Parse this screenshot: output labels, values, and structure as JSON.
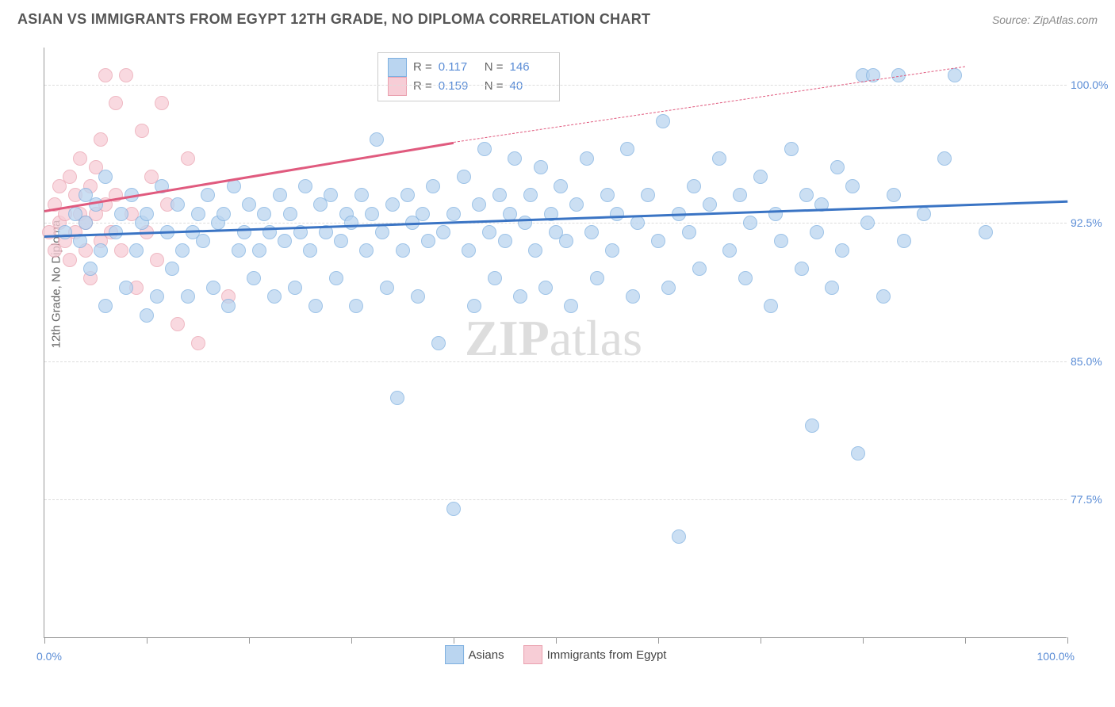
{
  "header": {
    "title": "ASIAN VS IMMIGRANTS FROM EGYPT 12TH GRADE, NO DIPLOMA CORRELATION CHART",
    "source": "Source: ZipAtlas.com"
  },
  "chart": {
    "type": "scatter",
    "y_axis_title": "12th Grade, No Diploma",
    "xlim_label_left": "0.0%",
    "xlim_label_right": "100.0%",
    "xlim": [
      0,
      100
    ],
    "ylim": [
      70,
      102
    ],
    "y_ticks": [
      {
        "val": 100.0,
        "label": "100.0%"
      },
      {
        "val": 92.5,
        "label": "92.5%"
      },
      {
        "val": 85.0,
        "label": "85.0%"
      },
      {
        "val": 77.5,
        "label": "77.5%"
      }
    ],
    "x_ticks": [
      0,
      10,
      20,
      30,
      40,
      50,
      60,
      70,
      80,
      90,
      100
    ],
    "background_color": "#ffffff",
    "grid_color": "#dddddd",
    "marker_radius": 9,
    "series_a": {
      "label": "Asians",
      "fill_color": "#bad5f0",
      "border_color": "#7eb0e0",
      "line_color": "#3a74c4",
      "R": "0.117",
      "N": "146",
      "trend": {
        "x1": 0,
        "y1": 91.8,
        "x2": 100,
        "y2": 93.7
      },
      "points": [
        [
          2,
          92
        ],
        [
          3,
          93
        ],
        [
          3.5,
          91.5
        ],
        [
          4,
          92.5
        ],
        [
          4,
          94
        ],
        [
          4.5,
          90
        ],
        [
          5,
          93.5
        ],
        [
          5.5,
          91
        ],
        [
          6,
          88
        ],
        [
          6,
          95
        ],
        [
          7,
          92
        ],
        [
          7.5,
          93
        ],
        [
          8,
          89
        ],
        [
          8.5,
          94
        ],
        [
          9,
          91
        ],
        [
          9.5,
          92.5
        ],
        [
          10,
          93
        ],
        [
          10,
          87.5
        ],
        [
          11,
          88.5
        ],
        [
          11.5,
          94.5
        ],
        [
          12,
          92
        ],
        [
          12.5,
          90
        ],
        [
          13,
          93.5
        ],
        [
          13.5,
          91
        ],
        [
          14,
          88.5
        ],
        [
          14.5,
          92
        ],
        [
          15,
          93
        ],
        [
          15.5,
          91.5
        ],
        [
          16,
          94
        ],
        [
          16.5,
          89
        ],
        [
          17,
          92.5
        ],
        [
          17.5,
          93
        ],
        [
          18,
          88
        ],
        [
          18.5,
          94.5
        ],
        [
          19,
          91
        ],
        [
          19.5,
          92
        ],
        [
          20,
          93.5
        ],
        [
          20.5,
          89.5
        ],
        [
          21,
          91
        ],
        [
          21.5,
          93
        ],
        [
          22,
          92
        ],
        [
          22.5,
          88.5
        ],
        [
          23,
          94
        ],
        [
          23.5,
          91.5
        ],
        [
          24,
          93
        ],
        [
          24.5,
          89
        ],
        [
          25,
          92
        ],
        [
          25.5,
          94.5
        ],
        [
          26,
          91
        ],
        [
          26.5,
          88
        ],
        [
          27,
          93.5
        ],
        [
          27.5,
          92
        ],
        [
          28,
          94
        ],
        [
          28.5,
          89.5
        ],
        [
          29,
          91.5
        ],
        [
          29.5,
          93
        ],
        [
          30,
          92.5
        ],
        [
          30.5,
          88
        ],
        [
          31,
          94
        ],
        [
          31.5,
          91
        ],
        [
          32,
          93
        ],
        [
          32.5,
          97
        ],
        [
          33,
          92
        ],
        [
          33.5,
          89
        ],
        [
          34,
          93.5
        ],
        [
          34.5,
          83
        ],
        [
          35,
          91
        ],
        [
          35.5,
          94
        ],
        [
          36,
          92.5
        ],
        [
          36.5,
          88.5
        ],
        [
          37,
          93
        ],
        [
          37.5,
          91.5
        ],
        [
          38,
          94.5
        ],
        [
          38.5,
          86
        ],
        [
          39,
          92
        ],
        [
          40,
          93
        ],
        [
          40,
          77
        ],
        [
          41,
          95
        ],
        [
          41.5,
          91
        ],
        [
          42,
          88
        ],
        [
          42.5,
          93.5
        ],
        [
          43,
          96.5
        ],
        [
          43.5,
          92
        ],
        [
          44,
          89.5
        ],
        [
          44.5,
          94
        ],
        [
          45,
          91.5
        ],
        [
          45.5,
          93
        ],
        [
          46,
          96
        ],
        [
          46.5,
          88.5
        ],
        [
          47,
          92.5
        ],
        [
          47.5,
          94
        ],
        [
          48,
          91
        ],
        [
          48.5,
          95.5
        ],
        [
          49,
          89
        ],
        [
          49.5,
          93
        ],
        [
          50,
          92
        ],
        [
          50.5,
          94.5
        ],
        [
          51,
          91.5
        ],
        [
          51.5,
          88
        ],
        [
          52,
          93.5
        ],
        [
          53,
          96
        ],
        [
          53.5,
          92
        ],
        [
          54,
          89.5
        ],
        [
          55,
          94
        ],
        [
          55.5,
          91
        ],
        [
          56,
          93
        ],
        [
          57,
          96.5
        ],
        [
          57.5,
          88.5
        ],
        [
          58,
          92.5
        ],
        [
          59,
          94
        ],
        [
          60,
          91.5
        ],
        [
          60.5,
          98
        ],
        [
          61,
          89
        ],
        [
          62,
          93
        ],
        [
          62,
          75.5
        ],
        [
          63,
          92
        ],
        [
          63.5,
          94.5
        ],
        [
          64,
          90
        ],
        [
          65,
          93.5
        ],
        [
          66,
          96
        ],
        [
          67,
          91
        ],
        [
          68,
          94
        ],
        [
          68.5,
          89.5
        ],
        [
          69,
          92.5
        ],
        [
          70,
          95
        ],
        [
          71,
          88
        ],
        [
          71.5,
          93
        ],
        [
          72,
          91.5
        ],
        [
          73,
          96.5
        ],
        [
          74,
          90
        ],
        [
          74.5,
          94
        ],
        [
          75,
          81.5
        ],
        [
          75.5,
          92
        ],
        [
          76,
          93.5
        ],
        [
          77,
          89
        ],
        [
          77.5,
          95.5
        ],
        [
          78,
          91
        ],
        [
          79,
          94.5
        ],
        [
          79.5,
          80
        ],
        [
          80,
          100.5
        ],
        [
          80.5,
          92.5
        ],
        [
          81,
          100.5
        ],
        [
          82,
          88.5
        ],
        [
          83,
          94
        ],
        [
          83.5,
          100.5
        ],
        [
          84,
          91.5
        ],
        [
          86,
          93
        ],
        [
          88,
          96
        ],
        [
          89,
          100.5
        ],
        [
          92,
          92
        ]
      ]
    },
    "series_b": {
      "label": "Immigrants from Egypt",
      "fill_color": "#f7cdd6",
      "border_color": "#eaa2b0",
      "line_color": "#e05a7e",
      "R": "0.159",
      "N": "40",
      "trend_solid": {
        "x1": 0,
        "y1": 93.2,
        "x2": 40,
        "y2": 96.9
      },
      "trend_dashed": {
        "x1": 40,
        "y1": 96.9,
        "x2": 90,
        "y2": 101
      },
      "points": [
        [
          0.5,
          92
        ],
        [
          1,
          93.5
        ],
        [
          1,
          91
        ],
        [
          1.5,
          92.5
        ],
        [
          1.5,
          94.5
        ],
        [
          2,
          91.5
        ],
        [
          2,
          93
        ],
        [
          2.5,
          95
        ],
        [
          2.5,
          90.5
        ],
        [
          3,
          92
        ],
        [
          3,
          94
        ],
        [
          3.5,
          93
        ],
        [
          3.5,
          96
        ],
        [
          4,
          91
        ],
        [
          4,
          92.5
        ],
        [
          4.5,
          94.5
        ],
        [
          4.5,
          89.5
        ],
        [
          5,
          93
        ],
        [
          5,
          95.5
        ],
        [
          5.5,
          91.5
        ],
        [
          5.5,
          97
        ],
        [
          6,
          93.5
        ],
        [
          6,
          100.5
        ],
        [
          6.5,
          92
        ],
        [
          7,
          94
        ],
        [
          7,
          99
        ],
        [
          7.5,
          91
        ],
        [
          8,
          100.5
        ],
        [
          8.5,
          93
        ],
        [
          9,
          89
        ],
        [
          9.5,
          97.5
        ],
        [
          10,
          92
        ],
        [
          10.5,
          95
        ],
        [
          11,
          90.5
        ],
        [
          11.5,
          99
        ],
        [
          12,
          93.5
        ],
        [
          13,
          87
        ],
        [
          14,
          96
        ],
        [
          15,
          86
        ],
        [
          18,
          88.5
        ]
      ]
    },
    "watermark": {
      "part1": "ZIP",
      "part2": "atlas"
    }
  }
}
